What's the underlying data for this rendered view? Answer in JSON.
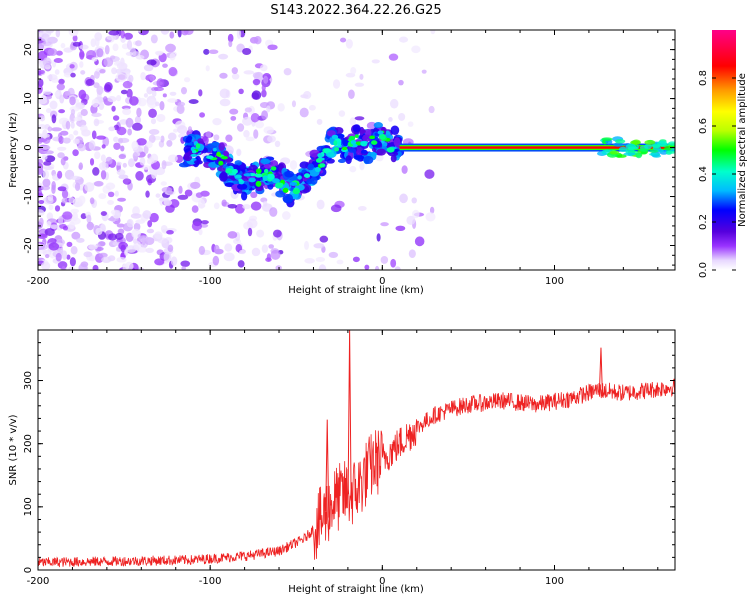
{
  "title": "S143.2022.364.22.26.G25",
  "chart_data": [
    {
      "type": "heatmap",
      "xlabel": "Height of straight line (km)",
      "ylabel": "Frequency (Hz)",
      "xlim": [
        -200,
        170
      ],
      "ylim": [
        -25,
        24
      ],
      "xticks": [
        -200,
        -100,
        0,
        100
      ],
      "yticks": [
        -20,
        -10,
        0,
        10,
        20
      ],
      "colorbar": {
        "label": "Normalized spectral amplitude",
        "range": [
          0,
          1
        ],
        "ticks": [
          0.0,
          0.2,
          0.4,
          0.6,
          0.8
        ],
        "colormap": [
          "#ffffff",
          "#e8d8ff",
          "#9933ff",
          "#5500dd",
          "#0000ff",
          "#00bbff",
          "#00ffcc",
          "#00ff00",
          "#bbff00",
          "#ffff00",
          "#ff9900",
          "#ff0000",
          "#ff0088"
        ]
      },
      "features": [
        {
          "region": "x -200 to -110",
          "description": "scattered low-amplitude noise"
        },
        {
          "region": "x -110 to 10",
          "description": "wandering signal dipping to about -10 Hz near x=-60, amplitude 0.2-0.4"
        },
        {
          "region": "x 10 to 170",
          "description": "steady carrier at 0 Hz, amplitude near 1.0"
        }
      ]
    },
    {
      "type": "line",
      "xlabel": "Height of straight line (km)",
      "ylabel": "SNR (10 * v/v)",
      "xlim": [
        -200,
        170
      ],
      "ylim": [
        0,
        380
      ],
      "xticks": [
        -200,
        -100,
        0,
        100
      ],
      "yticks": [
        0,
        100,
        200,
        300
      ],
      "color": "#ee2222",
      "envelope": {
        "x": [
          -200,
          -150,
          -110,
          -80,
          -60,
          -45,
          -35,
          -28,
          -22,
          -18,
          -14,
          -10,
          -5,
          0,
          10,
          20,
          30,
          40,
          50,
          70,
          90,
          110,
          125,
          140,
          170
        ],
        "y": [
          12,
          14,
          16,
          22,
          30,
          50,
          80,
          110,
          120,
          120,
          130,
          150,
          170,
          175,
          200,
          225,
          245,
          255,
          262,
          268,
          262,
          272,
          285,
          280,
          290
        ]
      },
      "spikes": [
        {
          "x": -32,
          "y": 238
        },
        {
          "x": -19,
          "y": 380
        },
        {
          "x": 127,
          "y": 352
        }
      ]
    }
  ]
}
